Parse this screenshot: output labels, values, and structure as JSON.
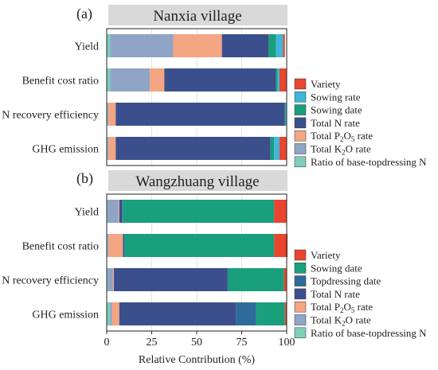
{
  "figure": {
    "xlabel": "Relative Contribution (%)",
    "xlim": [
      0,
      100
    ],
    "xticks": [
      0,
      25,
      50,
      75,
      100
    ],
    "grid": true
  },
  "chart_data": [
    {
      "type": "bar",
      "orientation": "horizontal",
      "stacked": true,
      "panel_label": "(a)",
      "title": "Nanxia village",
      "categories": [
        "Yield",
        "Benefit cost ratio",
        "N recovery efficiency",
        "GHG emission"
      ],
      "xlim": [
        0,
        100
      ],
      "legend_position": "right",
      "series": [
        {
          "name": "Ratio of base-topdressing N",
          "color": "#7fcdbb",
          "values": [
            2,
            2,
            0.5,
            0.5
          ]
        },
        {
          "name": "Total K2O rate",
          "color": "#8fa4c6",
          "values": [
            35,
            22,
            0.5,
            0.5
          ]
        },
        {
          "name": "Total P2O5 rate",
          "color": "#f4a582",
          "values": [
            27,
            8,
            4,
            4
          ]
        },
        {
          "name": "Total N rate",
          "color": "#3b4f8c",
          "values": [
            26,
            62,
            94,
            86
          ]
        },
        {
          "name": "Sowing date",
          "color": "#1a9f7c",
          "values": [
            4,
            1,
            0.5,
            2
          ]
        },
        {
          "name": "Sowing rate",
          "color": "#41b6d9",
          "values": [
            4,
            1,
            0.5,
            3
          ]
        },
        {
          "name": "Variety",
          "color": "#e8452e",
          "values": [
            1,
            4,
            0,
            4
          ]
        }
      ]
    },
    {
      "type": "bar",
      "orientation": "horizontal",
      "stacked": true,
      "panel_label": "(b)",
      "title": "Wangzhuang village",
      "categories": [
        "Yield",
        "Benefit cost ratio",
        "N recovery efficiency",
        "GHG emission"
      ],
      "xlim": [
        0,
        100
      ],
      "legend_position": "right",
      "series": [
        {
          "name": "Ratio of base-topdressing N",
          "color": "#7fcdbb",
          "values": [
            0.5,
            0.5,
            0.5,
            2
          ]
        },
        {
          "name": "Total K2O rate",
          "color": "#8fa4c6",
          "values": [
            6,
            0.5,
            3,
            1
          ]
        },
        {
          "name": "Total P2O5 rate",
          "color": "#f4a582",
          "values": [
            0.5,
            8,
            0.5,
            4
          ]
        },
        {
          "name": "Total N rate",
          "color": "#3b4f8c",
          "values": [
            1.5,
            0.5,
            63,
            65
          ]
        },
        {
          "name": "Topdressing date",
          "color": "#2f6b9a",
          "values": [
            0.5,
            0.5,
            0.5,
            11
          ]
        },
        {
          "name": "Sowing date",
          "color": "#1a9f7c",
          "values": [
            84,
            83,
            31,
            16
          ]
        },
        {
          "name": "Variety",
          "color": "#e8452e",
          "values": [
            7,
            7.5,
            1.5,
            1
          ]
        }
      ]
    }
  ],
  "legends": [
    [
      {
        "text": "Variety",
        "sub": "",
        "color": "#e8452e"
      },
      {
        "text": "Sowing rate",
        "sub": "",
        "color": "#41b6d9"
      },
      {
        "text": "Sowing date",
        "sub": "",
        "color": "#1a9f7c"
      },
      {
        "text": "Total N rate",
        "sub": "",
        "color": "#3b4f8c"
      },
      {
        "text": "Total P",
        "sub": "2",
        "mid": "O",
        "sub2": "5",
        "tail": " rate",
        "color": "#f4a582"
      },
      {
        "text": "Total K",
        "sub": "2",
        "mid": "O",
        "sub2": "",
        "tail": " rate",
        "color": "#8fa4c6"
      },
      {
        "text": "Ratio of base-topdressing N",
        "sub": "",
        "color": "#7fcdbb"
      }
    ],
    [
      {
        "text": "Variety",
        "sub": "",
        "color": "#e8452e"
      },
      {
        "text": "Sowing date",
        "sub": "",
        "color": "#1a9f7c"
      },
      {
        "text": "Topdressing date",
        "sub": "",
        "color": "#2f6b9a"
      },
      {
        "text": "Total N rate",
        "sub": "",
        "color": "#3b4f8c"
      },
      {
        "text": "Total P",
        "sub": "2",
        "mid": "O",
        "sub2": "5",
        "tail": " rate",
        "color": "#f4a582"
      },
      {
        "text": "Total K",
        "sub": "2",
        "mid": "O",
        "sub2": "",
        "tail": " rate",
        "color": "#8fa4c6"
      },
      {
        "text": "Ratio of base-topdressing N",
        "sub": "",
        "color": "#7fcdbb"
      }
    ]
  ]
}
